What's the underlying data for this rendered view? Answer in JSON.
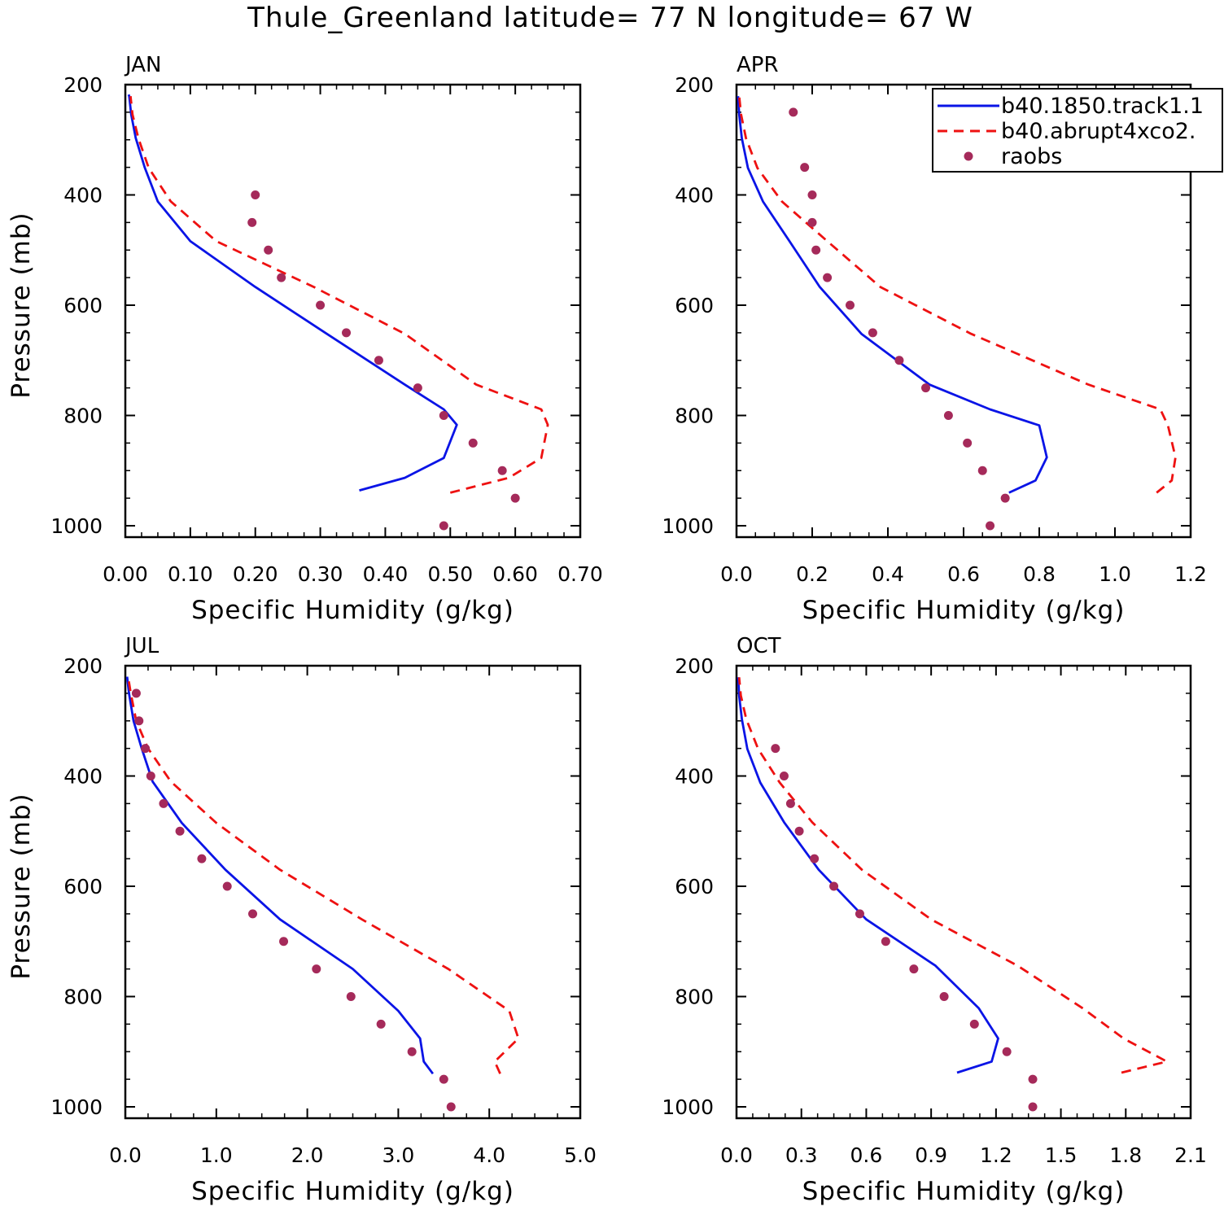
{
  "figure": {
    "title": "Thule_Greenland  latitude= 77 N longitude= 67 W"
  },
  "legend": {
    "entries": [
      {
        "label": "b40.1850.track1.1",
        "color": "#0a14e6",
        "style": "solid"
      },
      {
        "label": "b40.abrupt4xco2.",
        "color": "#ee1111",
        "style": "dashed"
      },
      {
        "label": "raobs",
        "color": "#a52a5a",
        "style": "marker"
      }
    ]
  },
  "colors": {
    "b40_1850": "#0a14e6",
    "abrupt4xco2": "#ee1111",
    "raobs": "#a52a5a"
  },
  "chart_data": [
    {
      "type": "line",
      "panel": "JAN",
      "xlabel": "Specific Humidity (g/kg)",
      "ylabel": "Pressure (mb)",
      "xlim": [
        0,
        0.7
      ],
      "ylim": [
        1000,
        200
      ],
      "y_inverted": true,
      "xticks": [
        "0.00",
        "0.10",
        "0.20",
        "0.30",
        "0.40",
        "0.50",
        "0.60",
        "0.70"
      ],
      "yticks": [
        "200",
        "400",
        "600",
        "800",
        "1000"
      ],
      "series": [
        {
          "name": "b40.1850.track1.1",
          "style": "solid",
          "x": [
            0.36,
            0.43,
            0.49,
            0.51,
            0.49,
            0.43,
            0.31,
            0.2,
            0.1,
            0.05,
            0.03,
            0.016,
            0.009,
            0.006,
            0.005
          ],
          "y": [
            936,
            913,
            877,
            817,
            789,
            744,
            652,
            567,
            484,
            412,
            351,
            297,
            254,
            221,
            218
          ]
        },
        {
          "name": "b40.abrupt4xco2.",
          "style": "dashed",
          "x": [
            0.5,
            0.59,
            0.64,
            0.65,
            0.64,
            0.54,
            0.43,
            0.29,
            0.14,
            0.07,
            0.036,
            0.02,
            0.011,
            0.008
          ],
          "y": [
            940,
            913,
            877,
            817,
            789,
            744,
            652,
            567,
            484,
            412,
            351,
            297,
            254,
            221
          ]
        },
        {
          "name": "raobs",
          "style": "marker",
          "x": [
            0.2,
            0.195,
            0.22,
            0.24,
            0.3,
            0.34,
            0.39,
            0.45,
            0.49,
            0.535,
            0.58,
            0.6,
            0.49
          ],
          "y": [
            400,
            450,
            500,
            550,
            600,
            650,
            700,
            750,
            800,
            850,
            900,
            950,
            1000
          ]
        }
      ]
    },
    {
      "type": "line",
      "panel": "APR",
      "xlabel": "Specific Humidity (g/kg)",
      "ylabel": "",
      "xlim": [
        0,
        1.2
      ],
      "ylim": [
        1000,
        200
      ],
      "y_inverted": true,
      "xticks": [
        "0.0",
        "0.2",
        "0.4",
        "0.6",
        "0.8",
        "1.0",
        "1.2"
      ],
      "yticks": [
        "200",
        "400",
        "600",
        "800",
        "1000"
      ],
      "series": [
        {
          "name": "b40.1850.track1.1",
          "style": "solid",
          "x": [
            0.72,
            0.79,
            0.82,
            0.8,
            0.67,
            0.51,
            0.33,
            0.22,
            0.14,
            0.07,
            0.03,
            0.014,
            0.007,
            0.004
          ],
          "y": [
            940,
            918,
            876,
            818,
            789,
            744,
            652,
            567,
            484,
            412,
            351,
            297,
            254,
            221
          ]
        },
        {
          "name": "b40.abrupt4xco2.",
          "style": "dashed",
          "x": [
            1.11,
            1.15,
            1.16,
            1.14,
            1.12,
            0.93,
            0.62,
            0.38,
            0.24,
            0.12,
            0.055,
            0.025,
            0.012,
            0.007
          ],
          "y": [
            940,
            918,
            876,
            818,
            789,
            744,
            652,
            567,
            484,
            412,
            351,
            297,
            254,
            221
          ]
        },
        {
          "name": "raobs",
          "style": "marker",
          "x": [
            0.15,
            0.18,
            0.2,
            0.2,
            0.21,
            0.24,
            0.3,
            0.36,
            0.43,
            0.5,
            0.56,
            0.61,
            0.65,
            0.71,
            0.67
          ],
          "y": [
            250,
            350,
            400,
            450,
            500,
            550,
            600,
            650,
            700,
            750,
            800,
            850,
            900,
            950,
            1000
          ]
        }
      ]
    },
    {
      "type": "line",
      "panel": "JUL",
      "xlabel": "Specific Humidity (g/kg)",
      "ylabel": "Pressure (mb)",
      "xlim": [
        0,
        5
      ],
      "ylim": [
        1000,
        200
      ],
      "y_inverted": true,
      "xticks": [
        "0.0",
        "1.0",
        "2.0",
        "3.0",
        "4.0",
        "5.0"
      ],
      "yticks": [
        "200",
        "400",
        "600",
        "800",
        "1000"
      ],
      "series": [
        {
          "name": "b40.1850.track1.1",
          "style": "solid",
          "x": [
            3.38,
            3.28,
            3.24,
            3.0,
            2.5,
            1.7,
            1.1,
            0.62,
            0.3,
            0.18,
            0.09,
            0.04,
            0.02
          ],
          "y": [
            940,
            918,
            876,
            826,
            750,
            660,
            570,
            485,
            410,
            350,
            300,
            250,
            220
          ]
        },
        {
          "name": "b40.abrupt4xco2.",
          "style": "dashed",
          "x": [
            4.12,
            4.06,
            4.32,
            4.22,
            3.55,
            2.6,
            1.7,
            1.0,
            0.5,
            0.25,
            0.12,
            0.06,
            0.03
          ],
          "y": [
            940,
            918,
            876,
            826,
            750,
            660,
            570,
            485,
            410,
            350,
            300,
            250,
            220
          ]
        },
        {
          "name": "raobs",
          "style": "marker",
          "x": [
            0.12,
            0.15,
            0.22,
            0.28,
            0.42,
            0.6,
            0.84,
            1.12,
            1.4,
            1.74,
            2.1,
            2.48,
            2.81,
            3.15,
            3.5,
            3.58
          ],
          "y": [
            250,
            300,
            350,
            400,
            450,
            500,
            550,
            600,
            650,
            700,
            750,
            800,
            850,
            900,
            950,
            1000
          ]
        }
      ]
    },
    {
      "type": "line",
      "panel": "OCT",
      "xlabel": "Specific Humidity (g/kg)",
      "ylabel": "",
      "xlim": [
        0,
        2.1
      ],
      "ylim": [
        1000,
        200
      ],
      "y_inverted": true,
      "xticks": [
        "0.0",
        "0.3",
        "0.6",
        "0.9",
        "1.2",
        "1.5",
        "1.8",
        "2.1"
      ],
      "yticks": [
        "200",
        "400",
        "600",
        "800",
        "1000"
      ],
      "series": [
        {
          "name": "b40.1850.track1.1",
          "style": "solid",
          "x": [
            1.02,
            1.18,
            1.21,
            1.12,
            0.92,
            0.6,
            0.38,
            0.22,
            0.11,
            0.05,
            0.025,
            0.012,
            0.008
          ],
          "y": [
            938,
            918,
            876,
            821,
            744,
            660,
            570,
            484,
            412,
            351,
            297,
            254,
            221
          ]
        },
        {
          "name": "b40.abrupt4xco2.",
          "style": "dashed",
          "x": [
            1.78,
            1.99,
            1.79,
            1.6,
            1.3,
            0.9,
            0.58,
            0.35,
            0.2,
            0.1,
            0.045,
            0.02,
            0.012
          ],
          "y": [
            938,
            918,
            876,
            821,
            744,
            660,
            570,
            484,
            412,
            351,
            297,
            254,
            221
          ]
        },
        {
          "name": "raobs",
          "style": "marker",
          "x": [
            0.18,
            0.22,
            0.25,
            0.29,
            0.36,
            0.45,
            0.57,
            0.69,
            0.82,
            0.96,
            1.1,
            1.25,
            1.37,
            1.37
          ],
          "y": [
            350,
            400,
            450,
            500,
            550,
            600,
            650,
            700,
            750,
            800,
            850,
            900,
            950,
            1000
          ]
        }
      ]
    }
  ]
}
